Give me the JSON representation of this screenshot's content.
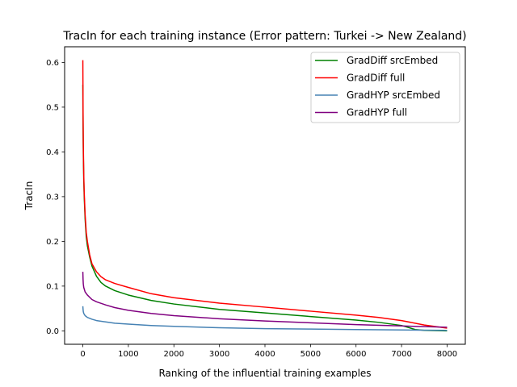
{
  "chart_data": {
    "type": "line",
    "title": "TracIn for each training instance (Error pattern: Turkei -> New Zealand)",
    "xlabel": "Ranking of the influential training examples",
    "ylabel": "TracIn",
    "xlim": [
      -400,
      8400
    ],
    "ylim": [
      -0.03,
      0.635
    ],
    "xticks": [
      0,
      1000,
      2000,
      3000,
      4000,
      5000,
      6000,
      7000,
      8000
    ],
    "yticks": [
      0.0,
      0.1,
      0.2,
      0.3,
      0.4,
      0.5,
      0.6
    ],
    "ytick_labels": [
      "0.0",
      "0.1",
      "0.2",
      "0.3",
      "0.4",
      "0.5",
      "0.6"
    ],
    "grid": false,
    "legend_position": "top-right",
    "series": [
      {
        "name": "GradDiff srcEmbed",
        "color": "#008000",
        "x": [
          0,
          5,
          10,
          20,
          30,
          50,
          75,
          100,
          150,
          200,
          300,
          400,
          500,
          700,
          1000,
          1500,
          2000,
          3000,
          4000,
          5000,
          6000,
          6500,
          7000,
          7300,
          7500,
          8000
        ],
        "y": [
          0.55,
          0.46,
          0.4,
          0.34,
          0.3,
          0.25,
          0.21,
          0.19,
          0.165,
          0.145,
          0.122,
          0.108,
          0.1,
          0.09,
          0.08,
          0.068,
          0.06,
          0.048,
          0.04,
          0.032,
          0.024,
          0.019,
          0.012,
          0.003,
          0.001,
          0.0
        ]
      },
      {
        "name": "GradDiff full",
        "color": "#ff0000",
        "x": [
          0,
          5,
          10,
          20,
          30,
          50,
          75,
          100,
          150,
          200,
          300,
          400,
          500,
          700,
          1000,
          1500,
          2000,
          3000,
          4000,
          5000,
          6000,
          6500,
          7000,
          7500,
          8000
        ],
        "y": [
          0.605,
          0.49,
          0.42,
          0.35,
          0.31,
          0.26,
          0.22,
          0.2,
          0.17,
          0.15,
          0.132,
          0.121,
          0.114,
          0.106,
          0.097,
          0.083,
          0.074,
          0.062,
          0.053,
          0.044,
          0.035,
          0.03,
          0.023,
          0.013,
          0.006
        ]
      },
      {
        "name": "GradHYP srcEmbed",
        "color": "#4682b4",
        "x": [
          0,
          5,
          10,
          20,
          50,
          100,
          200,
          300,
          500,
          700,
          1000,
          1500,
          2000,
          3000,
          4000,
          5000,
          6000,
          7000,
          8000
        ],
        "y": [
          0.055,
          0.048,
          0.043,
          0.039,
          0.034,
          0.03,
          0.026,
          0.023,
          0.02,
          0.017,
          0.015,
          0.012,
          0.01,
          0.007,
          0.005,
          0.004,
          0.003,
          0.002,
          0.001
        ]
      },
      {
        "name": "GradHYP full",
        "color": "#800080",
        "x": [
          0,
          5,
          10,
          20,
          50,
          100,
          200,
          300,
          500,
          700,
          1000,
          1500,
          2000,
          3000,
          4000,
          5000,
          6000,
          7000,
          8000
        ],
        "y": [
          0.132,
          0.115,
          0.105,
          0.097,
          0.087,
          0.08,
          0.07,
          0.065,
          0.058,
          0.052,
          0.046,
          0.039,
          0.034,
          0.027,
          0.022,
          0.018,
          0.014,
          0.011,
          0.008
        ]
      }
    ]
  }
}
